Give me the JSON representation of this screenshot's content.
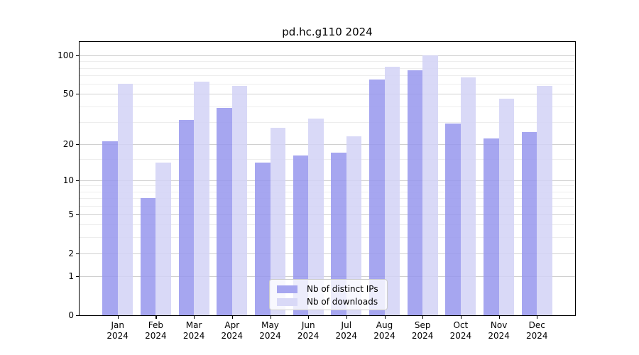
{
  "title": "pd.hc.g110 2024",
  "chart_data": {
    "type": "bar",
    "title": "pd.hc.g110 2024",
    "categories": [
      "Jan 2024",
      "Feb 2024",
      "Mar 2024",
      "Apr 2024",
      "May 2024",
      "Jun 2024",
      "Jul 2024",
      "Aug 2024",
      "Sep 2024",
      "Oct 2024",
      "Nov 2024",
      "Dec 2024"
    ],
    "month_labels": [
      "Jan",
      "Feb",
      "Mar",
      "Apr",
      "May",
      "Jun",
      "Jul",
      "Aug",
      "Sep",
      "Oct",
      "Nov",
      "Dec"
    ],
    "year_label": "2024",
    "series": [
      {
        "name": "Nb of distinct IPs",
        "color": "#a6a6f0",
        "values": [
          21,
          7,
          31,
          39,
          14,
          16,
          17,
          65,
          77,
          29,
          22,
          25
        ]
      },
      {
        "name": "Nb of downloads",
        "color": "#d9d9f7",
        "values": [
          60,
          14,
          62,
          58,
          27,
          32,
          23,
          82,
          100,
          67,
          46,
          58
        ]
      }
    ],
    "y_axis": {
      "scale": "log1p",
      "ticks": [
        0,
        1,
        2,
        5,
        10,
        20,
        50,
        100
      ],
      "minor_gridlines": [
        3,
        4,
        6,
        7,
        8,
        9,
        15,
        30,
        40,
        60,
        70,
        80,
        90
      ],
      "range": [
        0,
        127
      ]
    },
    "grid": true,
    "legend_position": "lower center"
  },
  "legend": {
    "items": [
      {
        "label": "Nb of distinct IPs",
        "color": "#a6a6f0"
      },
      {
        "label": "Nb of downloads",
        "color": "#d9d9f7"
      }
    ]
  }
}
